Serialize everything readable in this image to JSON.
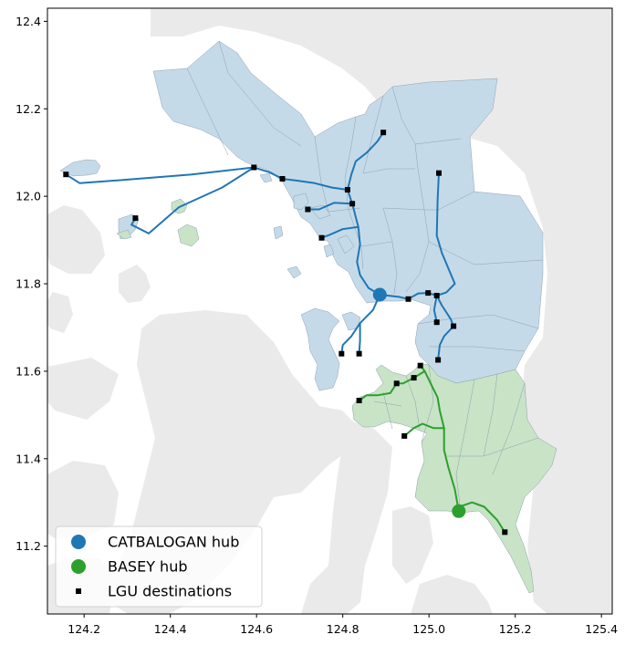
{
  "colors": {
    "background_land": "#eaeaea",
    "catbalogan_region": "#c5dae9",
    "basey_region": "#c8e3c6",
    "catbalogan_route": "#1f77b4",
    "basey_route": "#2ca02c",
    "boundary": "#8f9fae",
    "destination": "#000000"
  },
  "map_data": {
    "type": "route_map",
    "axes": {
      "xlim": [
        124.115,
        125.425
      ],
      "ylim": [
        11.045,
        12.43
      ],
      "xticks": [
        "124.2",
        "124.4",
        "124.6",
        "124.8",
        "125.0",
        "125.2",
        "125.4"
      ],
      "yticks": [
        "11.2",
        "11.4",
        "11.6",
        "11.8",
        "12.0",
        "12.2",
        "12.4"
      ]
    },
    "legend": {
      "position": "lower-left",
      "entries": [
        {
          "label": "CATBALOGAN hub",
          "marker": "circle",
          "color": "#1f77b4"
        },
        {
          "label": "BASEY hub",
          "marker": "circle",
          "color": "#2ca02c"
        },
        {
          "label": "LGU destinations",
          "marker": "square",
          "color": "#000000"
        }
      ]
    },
    "hubs": [
      {
        "name": "CATBALOGAN hub",
        "lon": 124.886,
        "lat": 11.775,
        "color": "#1f77b4"
      },
      {
        "name": "BASEY hub",
        "lon": 125.069,
        "lat": 11.28,
        "color": "#2ca02c"
      }
    ],
    "destinations": [
      [
        124.158,
        12.05
      ],
      [
        124.319,
        11.95
      ],
      [
        124.594,
        12.066
      ],
      [
        124.66,
        12.04
      ],
      [
        124.719,
        11.97
      ],
      [
        124.751,
        11.905
      ],
      [
        124.811,
        12.015
      ],
      [
        124.822,
        11.983
      ],
      [
        124.894,
        12.146
      ],
      [
        125.023,
        12.053
      ],
      [
        124.952,
        11.765
      ],
      [
        124.998,
        11.779
      ],
      [
        125.018,
        11.773
      ],
      [
        125.057,
        11.703
      ],
      [
        125.018,
        11.712
      ],
      [
        125.021,
        11.626
      ],
      [
        124.797,
        11.64
      ],
      [
        124.838,
        11.64
      ],
      [
        124.838,
        11.533
      ],
      [
        124.925,
        11.572
      ],
      [
        124.943,
        11.452
      ],
      [
        124.965,
        11.585
      ],
      [
        124.98,
        11.613
      ],
      [
        125.176,
        11.232
      ]
    ],
    "routes": [
      {
        "hub": "CATBALOGAN hub",
        "points": [
          [
            124.886,
            11.775
          ],
          [
            124.86,
            11.79
          ],
          [
            124.84,
            11.82
          ],
          [
            124.833,
            11.85
          ],
          [
            124.84,
            11.89
          ],
          [
            124.836,
            11.93
          ],
          [
            124.822,
            11.983
          ]
        ]
      },
      {
        "hub": "CATBALOGAN hub",
        "points": [
          [
            124.822,
            11.983
          ],
          [
            124.811,
            12.015
          ],
          [
            124.775,
            12.02
          ],
          [
            124.735,
            12.03
          ],
          [
            124.7,
            12.035
          ],
          [
            124.66,
            12.04
          ],
          [
            124.63,
            12.055
          ],
          [
            124.594,
            12.066
          ]
        ]
      },
      {
        "hub": "CATBALOGAN hub",
        "points": [
          [
            124.594,
            12.066
          ],
          [
            124.45,
            12.05
          ],
          [
            124.3,
            12.038
          ],
          [
            124.19,
            12.03
          ],
          [
            124.158,
            12.05
          ]
        ]
      },
      {
        "hub": "CATBALOGAN hub",
        "points": [
          [
            124.594,
            12.066
          ],
          [
            124.52,
            12.02
          ],
          [
            124.42,
            11.975
          ],
          [
            124.35,
            11.915
          ],
          [
            124.31,
            11.935
          ],
          [
            124.319,
            11.95
          ]
        ]
      },
      {
        "hub": "CATBALOGAN hub",
        "points": [
          [
            124.822,
            11.983
          ],
          [
            124.78,
            11.985
          ],
          [
            124.745,
            11.97
          ],
          [
            124.719,
            11.97
          ]
        ]
      },
      {
        "hub": "CATBALOGAN hub",
        "points": [
          [
            124.836,
            11.93
          ],
          [
            124.8,
            11.925
          ],
          [
            124.77,
            11.912
          ],
          [
            124.751,
            11.905
          ]
        ]
      },
      {
        "hub": "CATBALOGAN hub",
        "points": [
          [
            124.811,
            12.015
          ],
          [
            124.82,
            12.05
          ],
          [
            124.83,
            12.08
          ],
          [
            124.856,
            12.1
          ],
          [
            124.88,
            12.125
          ],
          [
            124.894,
            12.146
          ]
        ]
      },
      {
        "hub": "CATBALOGAN hub",
        "points": [
          [
            124.886,
            11.775
          ],
          [
            124.93,
            11.77
          ],
          [
            124.952,
            11.765
          ],
          [
            124.975,
            11.778
          ],
          [
            124.998,
            11.779
          ],
          [
            125.018,
            11.773
          ],
          [
            125.04,
            11.78
          ],
          [
            125.06,
            11.8
          ],
          [
            125.03,
            11.87
          ],
          [
            125.018,
            11.91
          ],
          [
            125.02,
            11.99
          ],
          [
            125.023,
            12.053
          ]
        ]
      },
      {
        "hub": "CATBALOGAN hub",
        "points": [
          [
            125.018,
            11.773
          ],
          [
            125.03,
            11.75
          ],
          [
            125.05,
            11.72
          ],
          [
            125.057,
            11.703
          ],
          [
            125.035,
            11.68
          ],
          [
            125.025,
            11.66
          ],
          [
            125.021,
            11.626
          ]
        ]
      },
      {
        "hub": "CATBALOGAN hub",
        "points": [
          [
            125.018,
            11.773
          ],
          [
            125.012,
            11.74
          ],
          [
            125.018,
            11.712
          ]
        ]
      },
      {
        "hub": "CATBALOGAN hub",
        "points": [
          [
            124.886,
            11.775
          ],
          [
            124.87,
            11.74
          ],
          [
            124.84,
            11.71
          ],
          [
            124.82,
            11.68
          ],
          [
            124.8,
            11.66
          ],
          [
            124.797,
            11.64
          ]
        ]
      },
      {
        "hub": "CATBALOGAN hub",
        "points": [
          [
            124.84,
            11.71
          ],
          [
            124.84,
            11.67
          ],
          [
            124.838,
            11.64
          ]
        ]
      },
      {
        "hub": "BASEY hub",
        "points": [
          [
            125.069,
            11.28
          ],
          [
            125.07,
            11.29
          ],
          [
            125.1,
            11.3
          ],
          [
            125.128,
            11.29
          ],
          [
            125.158,
            11.26
          ],
          [
            125.176,
            11.232
          ]
        ]
      },
      {
        "hub": "BASEY hub",
        "points": [
          [
            125.069,
            11.28
          ],
          [
            125.06,
            11.33
          ],
          [
            125.045,
            11.38
          ],
          [
            125.035,
            11.42
          ],
          [
            125.035,
            11.47
          ],
          [
            125.025,
            11.51
          ],
          [
            125.02,
            11.54
          ],
          [
            125.005,
            11.57
          ],
          [
            124.99,
            11.6
          ],
          [
            124.98,
            11.613
          ]
        ]
      },
      {
        "hub": "BASEY hub",
        "points": [
          [
            124.99,
            11.6
          ],
          [
            124.965,
            11.585
          ],
          [
            124.94,
            11.572
          ],
          [
            124.925,
            11.572
          ],
          [
            124.91,
            11.55
          ],
          [
            124.88,
            11.545
          ],
          [
            124.855,
            11.545
          ],
          [
            124.838,
            11.533
          ]
        ]
      },
      {
        "hub": "BASEY hub",
        "points": [
          [
            125.035,
            11.47
          ],
          [
            125.01,
            11.47
          ],
          [
            124.985,
            11.48
          ],
          [
            124.965,
            11.47
          ],
          [
            124.943,
            11.452
          ]
        ]
      }
    ]
  }
}
